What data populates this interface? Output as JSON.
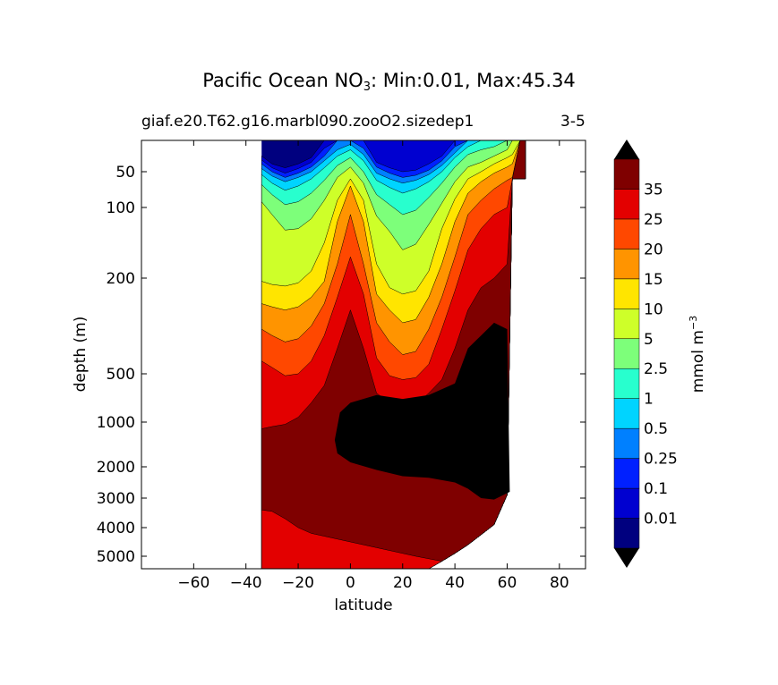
{
  "chart_data": {
    "type": "heatmap",
    "title_prefix": "Pacific Ocean NO",
    "title_sub": "3",
    "title_suffix": ": Min:0.01, Max:45.34",
    "subtitle_left": "giaf.e20.T62.g16.marbl090.zooO2.sizedep1",
    "subtitle_right": "3-5",
    "xlabel": "latitude",
    "ylabel": "depth (m)",
    "xlim": [
      -80,
      90
    ],
    "x_ticks": [
      -60,
      -40,
      -20,
      0,
      20,
      40,
      60,
      80
    ],
    "x_tick_labels": [
      "−60",
      "−40",
      "−20",
      "0",
      "20",
      "40",
      "60",
      "80"
    ],
    "y_ticks": [
      50,
      100,
      200,
      500,
      1000,
      2000,
      3000,
      4000,
      5000
    ],
    "y_tick_labels": [
      "50",
      "100",
      "200",
      "500",
      "1000",
      "2000",
      "3000",
      "4000",
      "5000"
    ],
    "data_extent_latitude": [
      -34,
      67
    ],
    "colorbar": {
      "label": "mmol m",
      "label_exp": "−3",
      "levels": [
        "0.01",
        "0.1",
        "0.25",
        "0.5",
        "1",
        "2.5",
        "5",
        "10",
        "15",
        "20",
        "25",
        "35"
      ],
      "colors": [
        "#00007f",
        "#0000d0",
        "#0020ff",
        "#0080ff",
        "#00d4ff",
        "#28ffce",
        "#7dff7a",
        "#ceff29",
        "#ffe500",
        "#ff9400",
        "#ff4800",
        "#e30000",
        "#7f0000"
      ],
      "extend_color": "#000000"
    }
  }
}
